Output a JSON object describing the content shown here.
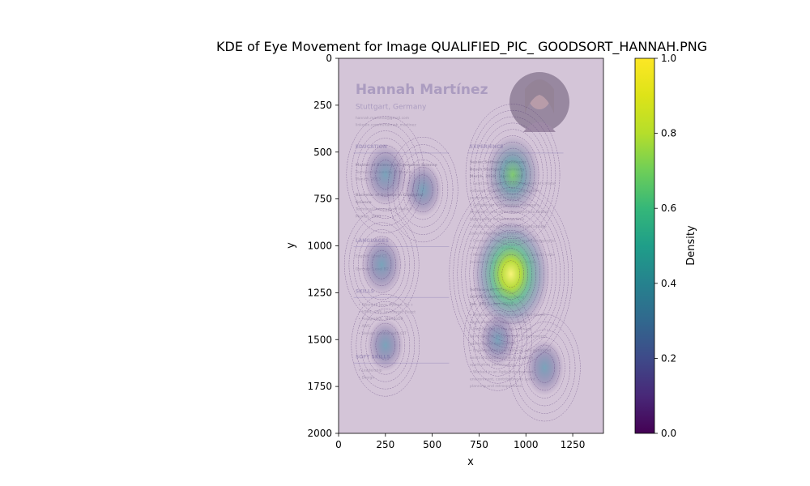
{
  "chart_data": {
    "type": "heatmap",
    "title": "KDE of Eye Movement for Image QUALIFIED_PIC_ GOODSORT_HANNAH.PNG",
    "xlabel": "x",
    "ylabel": "y",
    "xlim": [
      0,
      1414
    ],
    "ylim": [
      2000,
      0
    ],
    "x_ticks": [
      0,
      250,
      500,
      750,
      1000,
      1250
    ],
    "y_ticks": [
      0,
      250,
      500,
      750,
      1000,
      1250,
      1500,
      1750,
      2000
    ],
    "colorbar": {
      "label": "Density",
      "range": [
        0,
        1
      ],
      "ticks": [
        0.0,
        0.2,
        0.4,
        0.6,
        0.8,
        1.0
      ],
      "tick_labels": [
        "0.0",
        "0.2",
        "0.4",
        "0.6",
        "0.8",
        "1.0"
      ],
      "colormap": "viridis"
    },
    "density_peaks": [
      {
        "x": 920,
        "y": 1150,
        "density": 1.0
      },
      {
        "x": 930,
        "y": 620,
        "density": 0.55
      },
      {
        "x": 250,
        "y": 620,
        "density": 0.3
      },
      {
        "x": 230,
        "y": 1100,
        "density": 0.25
      },
      {
        "x": 450,
        "y": 700,
        "density": 0.18
      },
      {
        "x": 1100,
        "y": 1650,
        "density": 0.2
      },
      {
        "x": 850,
        "y": 1500,
        "density": 0.15
      },
      {
        "x": 250,
        "y": 1530,
        "density": 0.15
      }
    ],
    "background_image_text": {
      "name": "Hannah Martínez",
      "location": "Stuttgart, Germany",
      "contact": [
        "hannah.martinez@gmail.com",
        "linkedin.com/in/hannah_martinez"
      ],
      "sections": {
        "education": "EDUCATION",
        "experience": "EXPERIENCE",
        "languages": "LANGUAGES",
        "skills": "SKILLS",
        "soft_skills": "SOFT SKILLS"
      },
      "education_lines": [
        "Master of Science in Computer Science",
        "Technical University of Munich",
        "Munich, 2013",
        "Bachelor of Science in Computer",
        "Science",
        "Technical University of Munich",
        "Munich, 2010"
      ],
      "experience_lines": [
        "Senior Software Developer",
        "Bosch Stuttgart, Germany",
        "March, 2018 - April, 2024",
        "• Lead the design and development of critical",
        "  software solutions, enhancing system",
        "  performance and reliability.",
        "• Collaborate with product managers,",
        "  designers, and other developers to deliver",
        "  high-quality software on time.",
        "• Write clean, efficient, and maintainable",
        "  code following best practices.",
        "• Conduct thorough testing and debugging to",
        "  ensure software quality.",
        "• Mentor junior developers and conduct code",
        "  reviews to uphold coding standards.",
        "Software Developer",
        "SOFTEQ Munich, Germany",
        "Jan, 2013 - Jan, 2018",
        "• Developed and maintained Java-based",
        "  applications for various clients.",
        "• Participated in the full software",
        "  development lifecycle from requirements",
        "  gathering to deployment.",
        "• Implemented new features and optimized",
        "  existing functionalities to improve",
        "  application performance.",
        "• Worked in an Agile development",
        "  environment, contributing to sprint",
        "  planning and retrospectives."
      ],
      "language_lines": [
        "English: Level C1",
        "German: Level B2"
      ],
      "skill_lines": [
        "• Fluent in Java, Python, C++",
        "• HTML, CSS, JavaScript, React",
        "• PostgreSQL, MongoDB",
        "• AWS",
        "• Version Control with GIT"
      ],
      "soft_skill_lines": [
        "• Leadership",
        "• Design"
      ]
    }
  },
  "colors": {
    "overlay": "#c3aec9",
    "contour": "#4a2a6a",
    "heading": "#5a5fb0"
  }
}
